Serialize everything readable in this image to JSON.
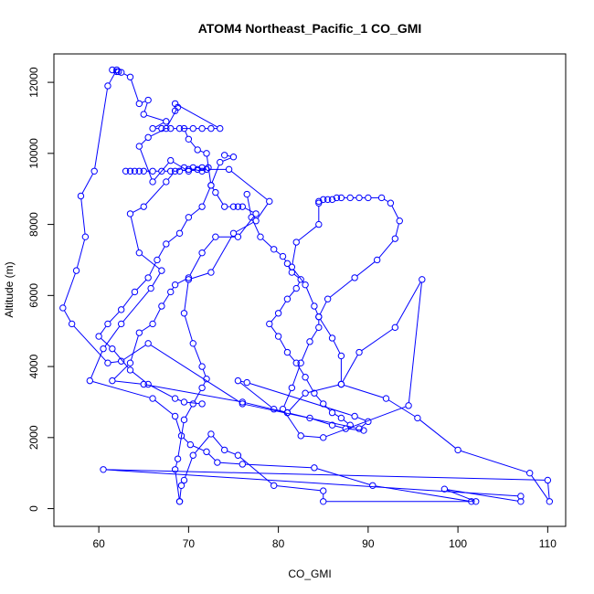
{
  "chart_data": {
    "type": "line",
    "title": "ATOM4 Northeast_Pacific_1 CO_GMI",
    "xlabel": "CO_GMI",
    "ylabel": "Altitude (m)",
    "xlim": [
      55,
      112
    ],
    "ylim": [
      -500,
      12800
    ],
    "xticks": [
      60,
      70,
      80,
      90,
      100,
      110
    ],
    "yticks": [
      0,
      2000,
      4000,
      6000,
      8000,
      10000,
      12000
    ],
    "grid": false,
    "legend": "none",
    "color": "#0000ff",
    "series": [
      {
        "values": [
          [
            69,
            200
          ],
          [
            69.2,
            650
          ],
          [
            69.5,
            800
          ],
          [
            70.5,
            1500
          ],
          [
            72.5,
            2100
          ],
          [
            74,
            1650
          ],
          [
            75.5,
            1500
          ],
          [
            79.5,
            650
          ],
          [
            85,
            500
          ],
          [
            85,
            200
          ],
          [
            102,
            200
          ],
          [
            98.5,
            550
          ],
          [
            107,
            200
          ],
          [
            107,
            350
          ],
          [
            60.5,
            1100
          ],
          [
            110,
            800
          ],
          [
            110.2,
            200
          ],
          [
            108,
            1000
          ],
          [
            100,
            1650
          ],
          [
            95.5,
            2550
          ],
          [
            92,
            3100
          ],
          [
            87,
            3500
          ],
          [
            83,
            3250
          ],
          [
            81,
            2700
          ],
          [
            79.5,
            2800
          ],
          [
            75.5,
            3600
          ],
          [
            76.5,
            3550
          ],
          [
            88.5,
            2600
          ],
          [
            90,
            2450
          ],
          [
            89,
            2250
          ],
          [
            76,
            2950
          ],
          [
            65.5,
            4650
          ],
          [
            62.5,
            4150
          ],
          [
            61,
            4100
          ],
          [
            57,
            5200
          ],
          [
            56,
            5650
          ],
          [
            57.5,
            6700
          ],
          [
            58.5,
            7650
          ],
          [
            58,
            8800
          ],
          [
            59.5,
            9500
          ],
          [
            61,
            11900
          ],
          [
            62,
            12350
          ]
        ]
      },
      {
        "values": [
          [
            61.5,
            12350
          ],
          [
            62,
            12300
          ],
          [
            62.2,
            12300
          ],
          [
            62.5,
            12280
          ],
          [
            63.5,
            12150
          ],
          [
            64.5,
            11400
          ],
          [
            65.5,
            11500
          ],
          [
            65,
            11100
          ],
          [
            67.5,
            10900
          ],
          [
            66,
            10700
          ],
          [
            67,
            10700
          ],
          [
            68,
            10700
          ],
          [
            69,
            10700
          ],
          [
            70.5,
            10700
          ],
          [
            71.5,
            10700
          ],
          [
            72.5,
            10700
          ],
          [
            73.5,
            10700
          ],
          [
            68.5,
            11400
          ],
          [
            68.5,
            11200
          ],
          [
            68.8,
            11300
          ],
          [
            67.5,
            10700
          ],
          [
            65.5,
            10450
          ],
          [
            64.5,
            10200
          ],
          [
            66,
            9200
          ],
          [
            68,
            9800
          ],
          [
            70,
            9500
          ],
          [
            70.5,
            9600
          ],
          [
            71.5,
            9600
          ],
          [
            72.2,
            9600
          ],
          [
            71.5,
            9500
          ],
          [
            69.5,
            9600
          ],
          [
            68.5,
            9500
          ],
          [
            67.5,
            9200
          ],
          [
            65,
            8500
          ],
          [
            63.5,
            8300
          ],
          [
            64.5,
            7200
          ],
          [
            67,
            6700
          ],
          [
            65.8,
            6200
          ],
          [
            62.5,
            5200
          ],
          [
            60.5,
            4500
          ],
          [
            59,
            3600
          ],
          [
            66,
            3100
          ],
          [
            68.5,
            2600
          ],
          [
            69.2,
            2050
          ],
          [
            70.2,
            1800
          ],
          [
            72,
            1600
          ],
          [
            73.2,
            1300
          ],
          [
            76,
            1250
          ],
          [
            84,
            1150
          ],
          [
            90.5,
            650
          ],
          [
            101.5,
            200
          ]
        ]
      },
      {
        "values": [
          [
            63,
            9500
          ],
          [
            63.5,
            9500
          ],
          [
            64,
            9500
          ],
          [
            64.5,
            9500
          ],
          [
            65,
            9500
          ],
          [
            66,
            9500
          ],
          [
            67,
            9500
          ],
          [
            68,
            9500
          ],
          [
            69,
            9500
          ],
          [
            70,
            9550
          ],
          [
            71,
            9550
          ],
          [
            72,
            9550
          ],
          [
            74.5,
            9550
          ],
          [
            79,
            8650
          ],
          [
            77.5,
            8100
          ],
          [
            75,
            7750
          ],
          [
            72.5,
            6650
          ],
          [
            70,
            6450
          ],
          [
            69.5,
            5500
          ],
          [
            70.5,
            4650
          ],
          [
            71.5,
            4000
          ],
          [
            72,
            3650
          ],
          [
            71.5,
            3400
          ],
          [
            70.5,
            2950
          ],
          [
            69.5,
            2500
          ],
          [
            68.8,
            1400
          ],
          [
            68.5,
            1100
          ],
          [
            69,
            200
          ]
        ]
      },
      {
        "values": [
          [
            84.5,
            8650
          ],
          [
            85,
            8700
          ],
          [
            85.5,
            8700
          ],
          [
            86,
            8700
          ],
          [
            86.5,
            8750
          ],
          [
            87,
            8750
          ],
          [
            88,
            8750
          ],
          [
            89,
            8750
          ],
          [
            90,
            8750
          ],
          [
            91.5,
            8750
          ],
          [
            92.5,
            8600
          ],
          [
            93.5,
            8100
          ],
          [
            93,
            7600
          ],
          [
            91,
            7000
          ],
          [
            88.5,
            6500
          ],
          [
            85.5,
            5900
          ],
          [
            84.5,
            5400
          ],
          [
            84.5,
            5100
          ],
          [
            83.5,
            4700
          ],
          [
            82.5,
            4100
          ],
          [
            81.5,
            3400
          ],
          [
            80.5,
            2800
          ],
          [
            82.5,
            2050
          ],
          [
            85,
            2000
          ],
          [
            94.5,
            2900
          ],
          [
            96,
            6450
          ],
          [
            93,
            5100
          ],
          [
            89,
            4400
          ],
          [
            87,
            3500
          ],
          [
            87,
            4300
          ],
          [
            86,
            4800
          ],
          [
            84.5,
            5400
          ],
          [
            84,
            5700
          ],
          [
            83,
            6300
          ],
          [
            81.5,
            6800
          ],
          [
            82,
            7500
          ],
          [
            84.5,
            8000
          ],
          [
            84.5,
            8600
          ]
        ]
      },
      {
        "values": [
          [
            69.5,
            10700
          ],
          [
            70,
            10400
          ],
          [
            71,
            10100
          ],
          [
            72,
            10000
          ],
          [
            72.5,
            9100
          ],
          [
            73,
            8900
          ],
          [
            74,
            8500
          ],
          [
            75,
            8500
          ],
          [
            75.5,
            8500
          ],
          [
            76,
            8500
          ],
          [
            77.5,
            8300
          ],
          [
            75.5,
            7650
          ],
          [
            73,
            7650
          ],
          [
            71.5,
            7200
          ],
          [
            70,
            6500
          ],
          [
            68.5,
            6300
          ],
          [
            68,
            6100
          ],
          [
            67,
            5700
          ],
          [
            66,
            5200
          ],
          [
            64.5,
            4950
          ],
          [
            63.5,
            4100
          ],
          [
            61.5,
            3600
          ],
          [
            65,
            3500
          ],
          [
            76,
            3000
          ],
          [
            81,
            2700
          ],
          [
            83.5,
            2550
          ],
          [
            86,
            2350
          ],
          [
            87.5,
            2250
          ],
          [
            89.5,
            2200
          ]
        ]
      },
      {
        "values": [
          [
            74,
            9950
          ],
          [
            75,
            9900
          ],
          [
            73.5,
            9750
          ],
          [
            72.5,
            9100
          ],
          [
            71.5,
            8500
          ],
          [
            70,
            8200
          ],
          [
            69,
            7750
          ],
          [
            67.5,
            7450
          ],
          [
            66.5,
            7000
          ],
          [
            65.5,
            6500
          ],
          [
            64,
            6100
          ],
          [
            62.5,
            5600
          ],
          [
            61,
            5200
          ],
          [
            60,
            4850
          ],
          [
            61.5,
            4500
          ],
          [
            63.5,
            3900
          ],
          [
            65.5,
            3500
          ],
          [
            68.5,
            3100
          ],
          [
            69.5,
            3000
          ],
          [
            71.5,
            2950
          ]
        ]
      },
      {
        "values": [
          [
            76.5,
            8850
          ],
          [
            77,
            8200
          ],
          [
            78,
            7650
          ],
          [
            79.5,
            7300
          ],
          [
            80.5,
            7100
          ],
          [
            81,
            6900
          ],
          [
            81.5,
            6650
          ],
          [
            82.5,
            6450
          ],
          [
            82,
            6200
          ],
          [
            81,
            5900
          ],
          [
            80,
            5500
          ],
          [
            79,
            5200
          ],
          [
            80,
            4850
          ],
          [
            81,
            4400
          ],
          [
            82,
            4100
          ],
          [
            83,
            3700
          ],
          [
            84,
            3250
          ],
          [
            85,
            2950
          ],
          [
            86,
            2700
          ],
          [
            87,
            2550
          ],
          [
            88,
            2350
          ]
        ]
      }
    ]
  }
}
